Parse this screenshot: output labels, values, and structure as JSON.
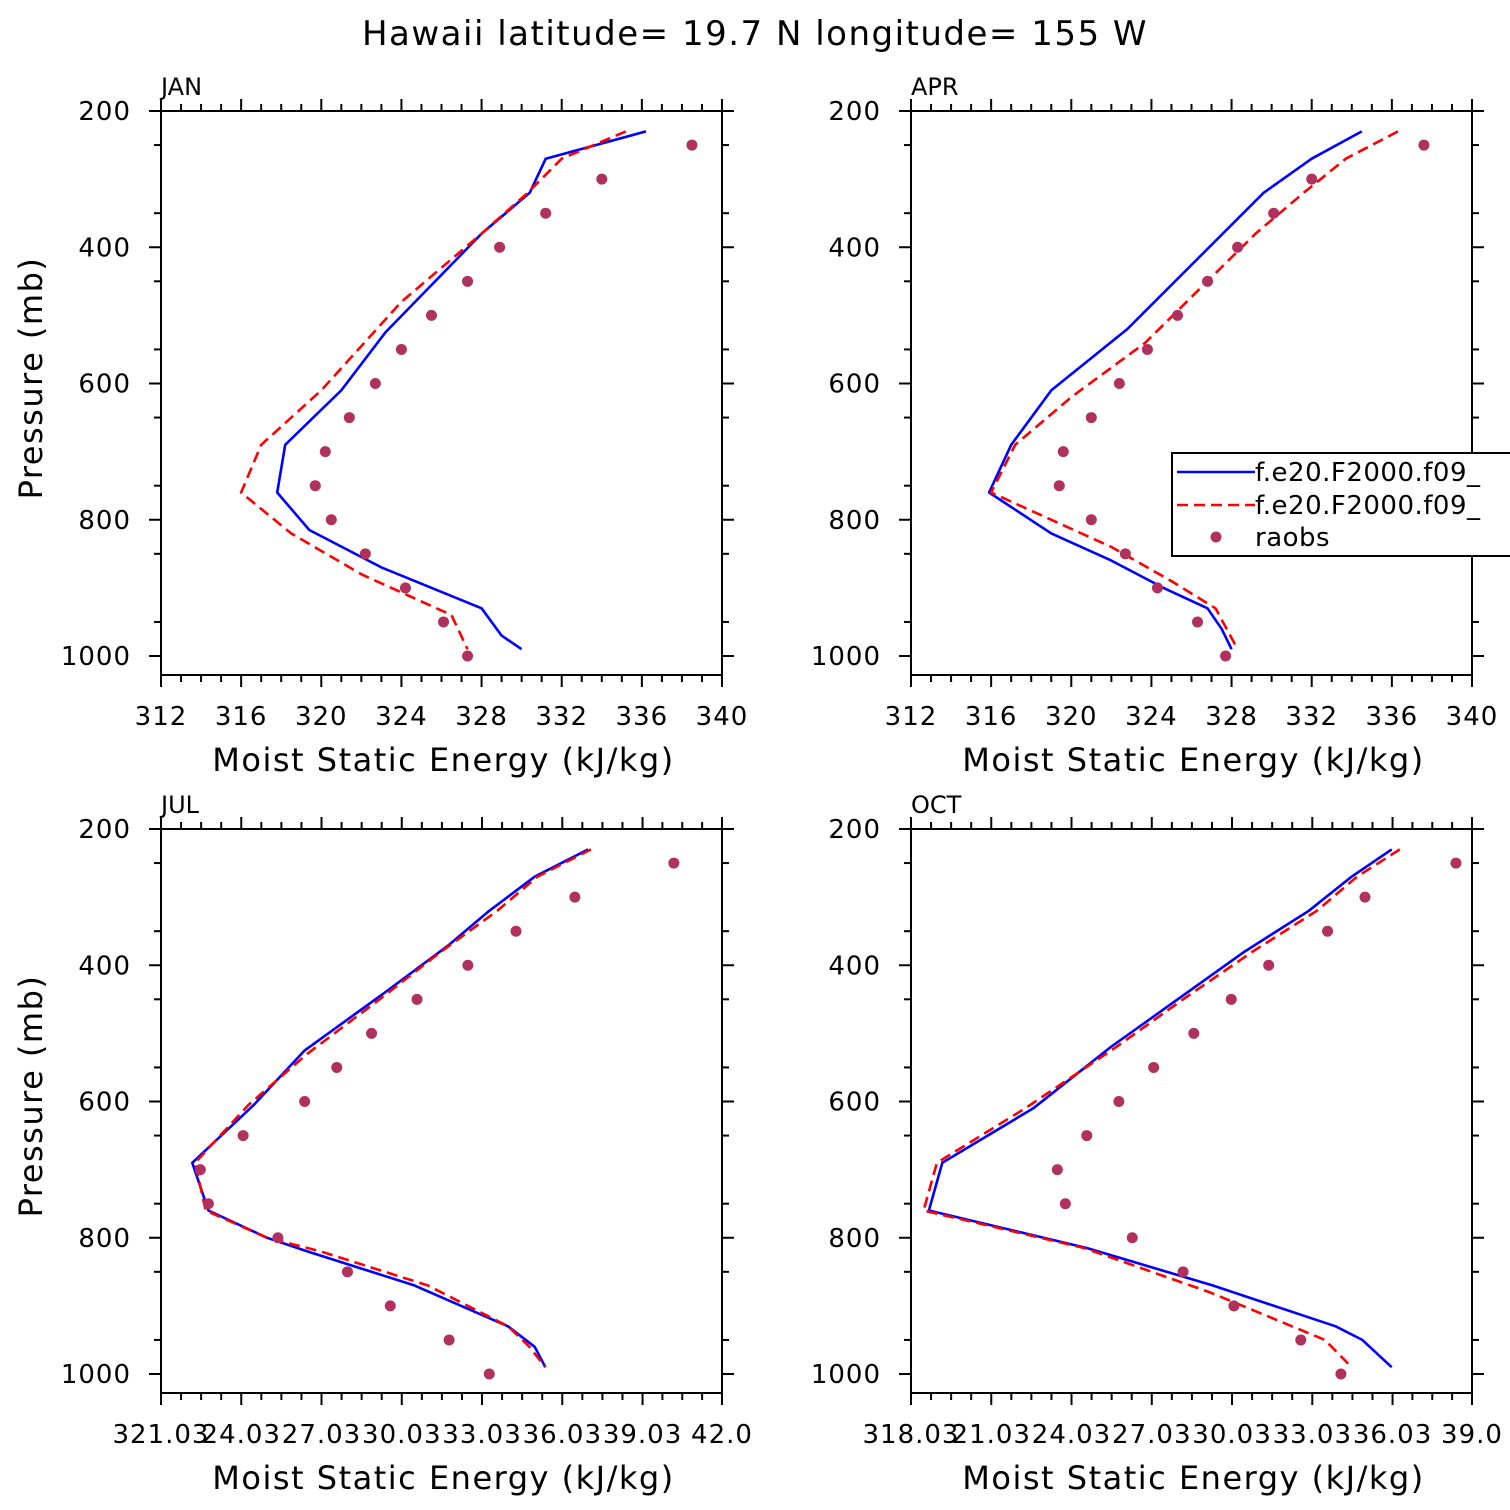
{
  "title": "Hawaii  latitude= 19.7 N longitude= 155 W",
  "colors": {
    "model1": "#0000ff",
    "model2": "#ff0000",
    "raobs": "#b0305e",
    "axis": "#000000"
  },
  "legend": {
    "location": "APR panel, right side",
    "entries": [
      "f.e20.F2000.f09_",
      "f.e20.F2000.f09_",
      "raobs"
    ]
  },
  "chart_data": [
    {
      "type": "line",
      "panel": "JAN",
      "xlabel": "Moist Static Energy (kJ/kg)",
      "ylabel": "Pressure (mb)",
      "xlim": [
        312,
        340
      ],
      "ylim": [
        1000,
        200
      ],
      "x_ticks": [
        312,
        316,
        320,
        324,
        328,
        332,
        336,
        340
      ],
      "x_tick_labels": [
        "312",
        "316",
        "320",
        "324",
        "328",
        "332",
        "336",
        "340"
      ],
      "y_ticks": [
        200,
        400,
        600,
        800,
        1000
      ],
      "y_tick_labels": [
        "200",
        "400",
        "600",
        "800",
        "1000"
      ],
      "series": [
        {
          "name": "f.e20.F2000.f09_",
          "style": "solid",
          "x": [
            336.2,
            331.2,
            330.4,
            328.0,
            323.2,
            321.0,
            318.2,
            317.8,
            319.4,
            323.0,
            328.0,
            329.0,
            330.0
          ],
          "y": [
            230,
            270,
            320,
            380,
            525,
            610,
            690,
            760,
            815,
            870,
            930,
            970,
            990
          ]
        },
        {
          "name": "f.e20.F2000.f09_",
          "style": "dashed",
          "x": [
            335.2,
            332.0,
            330.3,
            328.0,
            324.0,
            320.0,
            317.0,
            316.0,
            318.5,
            322.0,
            326.5,
            327.3
          ],
          "y": [
            230,
            270,
            320,
            380,
            480,
            610,
            690,
            760,
            820,
            880,
            940,
            990
          ]
        },
        {
          "name": "raobs",
          "style": "points",
          "x": [
            338.5,
            334.0,
            331.2,
            328.9,
            327.3,
            325.5,
            324.0,
            322.7,
            321.4,
            320.2,
            319.7,
            320.5,
            322.2,
            324.2,
            326.1,
            327.3
          ],
          "y": [
            250,
            300,
            350,
            400,
            450,
            500,
            550,
            600,
            650,
            700,
            750,
            800,
            850,
            900,
            950,
            1000
          ]
        }
      ]
    },
    {
      "type": "line",
      "panel": "APR",
      "xlabel": "Moist Static Energy (kJ/kg)",
      "ylabel": "",
      "xlim": [
        312,
        340
      ],
      "ylim": [
        1000,
        200
      ],
      "x_ticks": [
        312,
        316,
        320,
        324,
        328,
        332,
        336,
        340
      ],
      "x_tick_labels": [
        "312",
        "316",
        "320",
        "324",
        "328",
        "332",
        "336",
        "340"
      ],
      "y_ticks": [
        200,
        400,
        600,
        800,
        1000
      ],
      "y_tick_labels": [
        "200",
        "400",
        "600",
        "800",
        "1000"
      ],
      "series": [
        {
          "name": "f.e20.F2000.f09_",
          "style": "solid",
          "x": [
            334.5,
            332.0,
            329.6,
            322.8,
            319.0,
            317.0,
            315.9,
            319.0,
            322.0,
            324.6,
            326.8,
            327.5,
            328.0
          ],
          "y": [
            230,
            270,
            320,
            520,
            610,
            690,
            760,
            820,
            860,
            900,
            930,
            960,
            990
          ]
        },
        {
          "name": "f.e20.F2000.f09_",
          "style": "dashed",
          "x": [
            336.3,
            333.7,
            331.6,
            329.2,
            323.7,
            320.0,
            317.2,
            316.0,
            319.0,
            322.0,
            325.0,
            327.2,
            328.3
          ],
          "y": [
            230,
            270,
            320,
            380,
            540,
            620,
            690,
            760,
            800,
            840,
            890,
            930,
            990
          ]
        },
        {
          "name": "raobs",
          "style": "points",
          "x": [
            337.6,
            332.0,
            330.1,
            328.3,
            326.8,
            325.3,
            323.8,
            322.4,
            321.0,
            319.6,
            319.4,
            321.0,
            322.7,
            324.3,
            326.3,
            327.7
          ],
          "y": [
            250,
            300,
            350,
            400,
            450,
            500,
            550,
            600,
            650,
            700,
            750,
            800,
            850,
            900,
            950,
            1000
          ]
        }
      ]
    },
    {
      "type": "line",
      "panel": "JUL",
      "xlabel": "Moist Static Energy (kJ/kg)",
      "ylabel": "Pressure (mb)",
      "xlim": [
        321.03,
        342.0
      ],
      "ylim": [
        1000,
        200
      ],
      "x_ticks": [
        321.03,
        324.03,
        327.03,
        330.03,
        333.03,
        336.03,
        339.03,
        342.0
      ],
      "x_tick_labels": [
        "321.03",
        "24.03",
        "27.03",
        "30.03",
        "33.03",
        "36.03",
        "39.03",
        "42.0"
      ],
      "y_ticks": [
        200,
        400,
        600,
        800,
        1000
      ],
      "y_tick_labels": [
        "200",
        "400",
        "600",
        "800",
        "1000"
      ],
      "series": [
        {
          "name": "f.e20.F2000.f09_",
          "style": "solid",
          "x": [
            337.0,
            335.0,
            333.3,
            331.8,
            329.4,
            326.4,
            324.5,
            322.2,
            322.8,
            325.0,
            326.5,
            330.5,
            334.0,
            335.0,
            335.4
          ],
          "y": [
            230,
            270,
            320,
            370,
            440,
            525,
            605,
            690,
            760,
            800,
            820,
            870,
            930,
            960,
            990
          ]
        },
        {
          "name": "f.e20.F2000.f09_",
          "style": "dashed",
          "x": [
            337.1,
            335.1,
            333.6,
            331.5,
            329.2,
            326.5,
            324.3,
            322.3,
            322.7,
            325.0,
            327.0,
            331.0,
            334.0,
            334.8,
            335.4
          ],
          "y": [
            230,
            270,
            320,
            380,
            450,
            530,
            605,
            690,
            760,
            800,
            820,
            870,
            930,
            960,
            990
          ]
        },
        {
          "name": "raobs",
          "style": "points",
          "x": [
            340.2,
            336.5,
            334.3,
            332.5,
            330.6,
            328.9,
            327.6,
            326.4,
            324.1,
            322.5,
            322.8,
            325.4,
            328.0,
            329.6,
            331.8,
            333.3
          ],
          "y": [
            250,
            300,
            350,
            400,
            450,
            500,
            550,
            600,
            650,
            700,
            750,
            800,
            850,
            900,
            950,
            1000
          ]
        }
      ]
    },
    {
      "type": "line",
      "panel": "OCT",
      "xlabel": "Moist Static Energy (kJ/kg)",
      "ylabel": "",
      "xlim": [
        318.03,
        339.0
      ],
      "ylim": [
        1000,
        200
      ],
      "x_ticks": [
        318.03,
        321.03,
        324.03,
        327.03,
        330.03,
        333.03,
        336.03,
        339.0
      ],
      "x_tick_labels": [
        "318.03",
        "21.03",
        "24.03",
        "27.03",
        "30.03",
        "33.03",
        "36.03",
        "39.0"
      ],
      "y_ticks": [
        200,
        400,
        600,
        800,
        1000
      ],
      "y_tick_labels": [
        "200",
        "400",
        "600",
        "800",
        "1000"
      ],
      "series": [
        {
          "name": "f.e20.F2000.f09_",
          "style": "solid",
          "x": [
            336.0,
            334.5,
            332.9,
            330.5,
            328.0,
            325.5,
            322.6,
            319.2,
            318.7,
            324.6,
            329.3,
            333.9,
            334.9,
            336.0
          ],
          "y": [
            230,
            270,
            320,
            380,
            450,
            520,
            610,
            690,
            760,
            815,
            870,
            930,
            950,
            990
          ]
        },
        {
          "name": "f.e20.F2000.f09_",
          "style": "dashed",
          "x": [
            336.3,
            334.7,
            333.2,
            330.8,
            328.2,
            325.7,
            322.3,
            319.0,
            318.5,
            324.5,
            329.2,
            333.5,
            334.5
          ],
          "y": [
            230,
            270,
            320,
            380,
            450,
            520,
            610,
            690,
            760,
            815,
            880,
            950,
            990
          ]
        },
        {
          "name": "raobs",
          "style": "points",
          "x": [
            338.4,
            335.0,
            333.6,
            331.4,
            330.0,
            328.6,
            327.1,
            325.8,
            324.6,
            323.5,
            323.8,
            326.3,
            328.2,
            330.1,
            332.6,
            334.1
          ],
          "y": [
            250,
            300,
            350,
            400,
            450,
            500,
            550,
            600,
            650,
            700,
            750,
            800,
            850,
            900,
            950,
            1000
          ]
        }
      ]
    }
  ]
}
